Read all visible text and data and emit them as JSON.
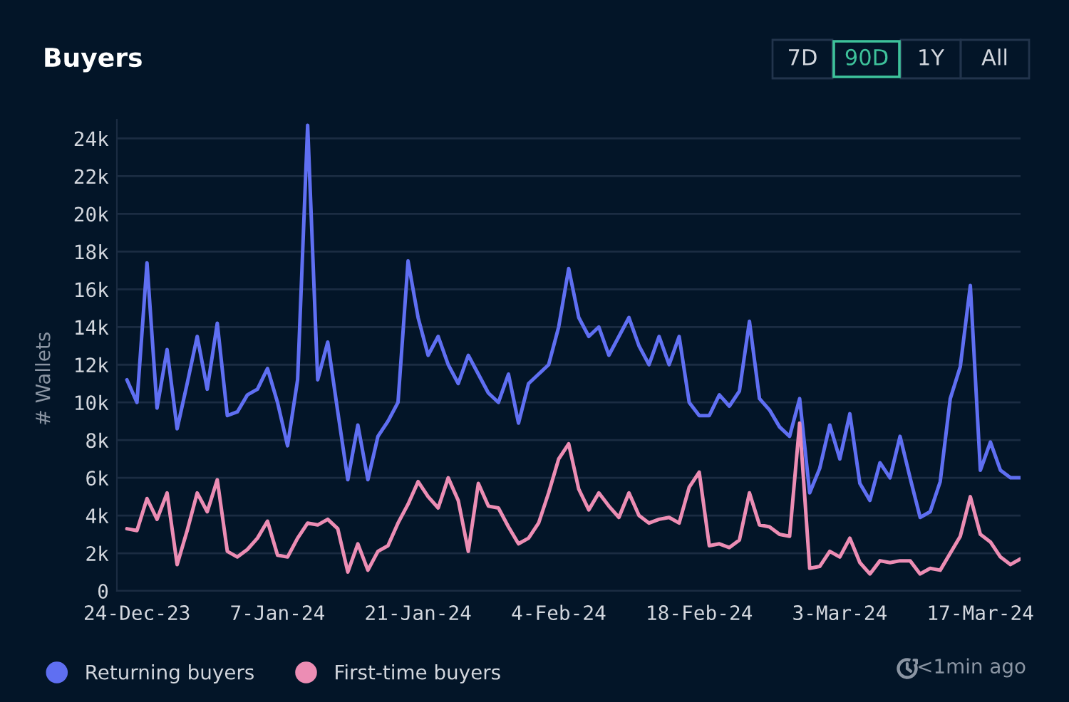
{
  "chart_data": {
    "type": "line",
    "title": "Buyers",
    "ylabel": "# Wallets",
    "annotations": [
      "7D",
      "90D",
      "1Y",
      "All",
      "<1min ago"
    ],
    "x": [
      "2023-12-23",
      "2023-12-24",
      "2023-12-25",
      "2023-12-26",
      "2023-12-27",
      "2023-12-28",
      "2023-12-29",
      "2023-12-30",
      "2023-12-31",
      "2024-01-01",
      "2024-01-02",
      "2024-01-03",
      "2024-01-04",
      "2024-01-05",
      "2024-01-06",
      "2024-01-07",
      "2024-01-08",
      "2024-01-09",
      "2024-01-10",
      "2024-01-11",
      "2024-01-12",
      "2024-01-13",
      "2024-01-14",
      "2024-01-15",
      "2024-01-16",
      "2024-01-17",
      "2024-01-18",
      "2024-01-19",
      "2024-01-20",
      "2024-01-21",
      "2024-01-22",
      "2024-01-23",
      "2024-01-24",
      "2024-01-25",
      "2024-01-26",
      "2024-01-27",
      "2024-01-28",
      "2024-01-29",
      "2024-01-30",
      "2024-01-31",
      "2024-02-01",
      "2024-02-02",
      "2024-02-03",
      "2024-02-04",
      "2024-02-05",
      "2024-02-06",
      "2024-02-07",
      "2024-02-08",
      "2024-02-09",
      "2024-02-10",
      "2024-02-11",
      "2024-02-12",
      "2024-02-13",
      "2024-02-14",
      "2024-02-15",
      "2024-02-16",
      "2024-02-17",
      "2024-02-18",
      "2024-02-19",
      "2024-02-20",
      "2024-02-21",
      "2024-02-22",
      "2024-02-23",
      "2024-02-24",
      "2024-02-25",
      "2024-02-26",
      "2024-02-27",
      "2024-02-28",
      "2024-02-29",
      "2024-03-01",
      "2024-03-02",
      "2024-03-03",
      "2024-03-04",
      "2024-03-05",
      "2024-03-06",
      "2024-03-07",
      "2024-03-08",
      "2024-03-09",
      "2024-03-10",
      "2024-03-11",
      "2024-03-12",
      "2024-03-13",
      "2024-03-14",
      "2024-03-15",
      "2024-03-16",
      "2024-03-17",
      "2024-03-18",
      "2024-03-19",
      "2024-03-20",
      "2024-03-21"
    ],
    "series": [
      {
        "name": "Returning buyers",
        "color": "#5f6ff2",
        "values": [
          11200,
          10000,
          17400,
          9700,
          12800,
          8600,
          11000,
          13500,
          10700,
          14200,
          9300,
          9500,
          10400,
          10700,
          11800,
          10000,
          7700,
          11200,
          24700,
          11200,
          13200,
          9500,
          5900,
          8800,
          5900,
          8200,
          9000,
          10000,
          17500,
          14500,
          12500,
          13500,
          12000,
          11000,
          12500,
          11500,
          10500,
          10000,
          11500,
          8900,
          11000,
          11500,
          12000,
          14000,
          17100,
          14500,
          13500,
          14000,
          12500,
          13500,
          14500,
          13000,
          12000,
          13500,
          12000,
          13500,
          10000,
          9300,
          9300,
          10400,
          9800,
          10600,
          14300,
          10200,
          9600,
          8700,
          8200,
          10200,
          5200,
          6500,
          8800,
          7000,
          9400,
          5700,
          4800,
          6800,
          6000,
          8200,
          6000,
          3900,
          4200,
          5800,
          10200,
          11900,
          16200,
          6400,
          7900,
          6400,
          6000,
          6000
        ]
      },
      {
        "name": "First-time buyers",
        "color": "#ec8db4",
        "values": [
          3300,
          3200,
          4900,
          3800,
          5200,
          1400,
          3200,
          5200,
          4200,
          5900,
          2100,
          1800,
          2200,
          2800,
          3700,
          1900,
          1800,
          2800,
          3600,
          3500,
          3800,
          3300,
          1000,
          2500,
          1100,
          2100,
          2400,
          3600,
          4600,
          5800,
          5000,
          4400,
          6000,
          4800,
          2100,
          5700,
          4500,
          4400,
          3400,
          2500,
          2800,
          3600,
          5200,
          7000,
          7800,
          5400,
          4300,
          5200,
          4500,
          3900,
          5200,
          4000,
          3600,
          3800,
          3900,
          3600,
          5500,
          6300,
          2400,
          2500,
          2300,
          2700,
          5200,
          3500,
          3400,
          3000,
          2900,
          8900,
          1200,
          1300,
          2100,
          1800,
          2800,
          1500,
          900,
          1600,
          1500,
          1600,
          1600,
          900,
          1200,
          1100,
          2000,
          2900,
          5000,
          3000,
          2600,
          1800,
          1400,
          1700
        ]
      }
    ],
    "xlim": [
      "2023-12-22",
      "2024-03-21"
    ],
    "xticks": [
      {
        "value": "2023-12-24",
        "label": "24-Dec-23"
      },
      {
        "value": "2024-01-07",
        "label": "7-Jan-24"
      },
      {
        "value": "2024-01-21",
        "label": "21-Jan-24"
      },
      {
        "value": "2024-02-04",
        "label": "4-Feb-24"
      },
      {
        "value": "2024-02-18",
        "label": "18-Feb-24"
      },
      {
        "value": "2024-03-03",
        "label": "3-Mar-24"
      },
      {
        "value": "2024-03-17",
        "label": "17-Mar-24"
      }
    ],
    "ylim": [
      0,
      25000
    ],
    "yticks": [
      0,
      {
        "value": 2000,
        "label": "2k"
      },
      {
        "value": 4000,
        "label": "4k"
      },
      {
        "value": 6000,
        "label": "6k"
      },
      {
        "value": 8000,
        "label": "8k"
      },
      {
        "value": 10000,
        "label": "10k"
      },
      {
        "value": 12000,
        "label": "12k"
      },
      {
        "value": 14000,
        "label": "14k"
      },
      {
        "value": 16000,
        "label": "16k"
      },
      {
        "value": 18000,
        "label": "18k"
      },
      {
        "value": 20000,
        "label": "20k"
      },
      {
        "value": 22000,
        "label": "22k"
      },
      {
        "value": 24000,
        "label": "24k"
      }
    ],
    "grid": "y",
    "legend": "bottom left"
  }
}
